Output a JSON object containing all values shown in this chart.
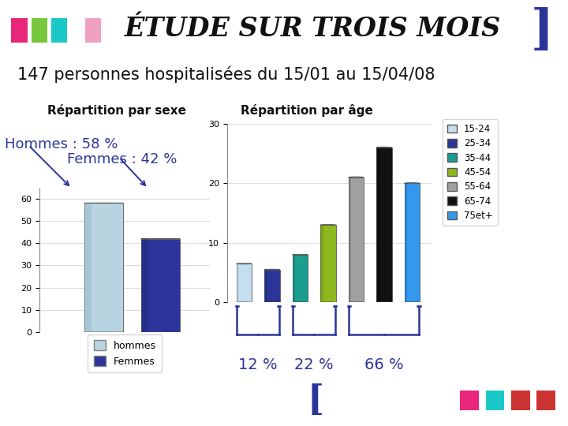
{
  "title": "ÉTUDE SUR TROIS MOIS",
  "subtitle": "147 personnes hospitalisées du 15/01 au 15/04/08",
  "bg_color": "#ffffff",
  "left_chart_title": "Répartition par sexe",
  "bar_hommes_value": 58,
  "bar_femmes_value": 42,
  "bar_hommes_color": "#b8d4e0",
  "bar_hommes_dark": "#8aafc0",
  "bar_femmes_color": "#2b3599",
  "bar_femmes_dark": "#1a2570",
  "left_ylim": [
    0,
    65
  ],
  "left_yticks": [
    0,
    10,
    20,
    30,
    40,
    50,
    60
  ],
  "hommes_label": "Hommes : 58 %",
  "femmes_label": "Femmes : 42 %",
  "legend_hommes": "hommes",
  "legend_femmes": "Femmes",
  "right_chart_title": "Répartition par âge",
  "age_categories": [
    "15-24",
    "25-34",
    "35-44",
    "45-54",
    "55-64",
    "65-74",
    "75et+"
  ],
  "age_values": [
    6.5,
    5.5,
    8,
    13,
    21,
    26,
    20
  ],
  "age_colors": [
    "#c5dff0",
    "#2b3599",
    "#1a9e8e",
    "#8db81e",
    "#a0a0a0",
    "#111111",
    "#3399ee"
  ],
  "age_dark_colors": [
    "#98c0d8",
    "#1a2470",
    "#107060",
    "#5a8000",
    "#606060",
    "#000000",
    "#1166bb"
  ],
  "right_ylim": [
    0,
    30
  ],
  "right_yticks": [
    0,
    10,
    20,
    30
  ],
  "pct_labels": [
    "12 %",
    "22 %",
    "66 %"
  ],
  "header_squares": [
    "#e8277a",
    "#78c83c",
    "#1ac8c8",
    "#f0a0c0"
  ],
  "bracket_color": "#2b3599",
  "title_fontsize": 24,
  "subtitle_fontsize": 15,
  "chart_title_fontsize": 11,
  "annotation_fontsize": 13,
  "pct_fontsize": 14
}
